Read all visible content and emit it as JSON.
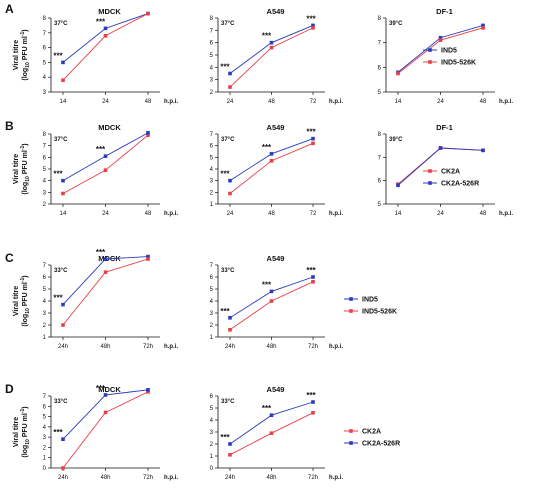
{
  "figure": {
    "panel_labels": [
      "A",
      "B",
      "C",
      "D"
    ],
    "ylabel_line1": "Viral titre",
    "ylabel_line2_pre": "(log",
    "ylabel_line2_sub": "10",
    "ylabel_line2_post": " PFU ml",
    "ylabel_line2_sup": "-1",
    "ylabel_line2_end": ")"
  },
  "colors": {
    "blue": "#2b3bbf",
    "red": "#e8404a"
  },
  "legends": [
    {
      "row": 0,
      "items": [
        {
          "label": "IND5",
          "color": "blue"
        },
        {
          "label": "IND5-526K",
          "color": "red"
        }
      ]
    },
    {
      "row": 1,
      "items": [
        {
          "label": "CK2A",
          "color": "red"
        },
        {
          "label": "CK2A-526R",
          "color": "blue"
        }
      ]
    },
    {
      "row": 2,
      "items": [
        {
          "label": "IND5",
          "color": "blue"
        },
        {
          "label": "IND5-526K",
          "color": "red"
        }
      ]
    },
    {
      "row": 3,
      "items": [
        {
          "label": "CK2A",
          "color": "red"
        },
        {
          "label": "CK2A-526R",
          "color": "blue"
        }
      ]
    }
  ],
  "chart_data": [
    {
      "type": "line",
      "row": 0,
      "col": 0,
      "title": "MDCK",
      "temp": "37°C",
      "xunit": "h.p.i.",
      "categories": [
        "14",
        "24",
        "48"
      ],
      "ylim": [
        3,
        8
      ],
      "yticks": [
        3,
        4,
        5,
        6,
        7,
        8
      ],
      "series": [
        {
          "name": "IND5",
          "color": "blue",
          "values": [
            5.0,
            7.3,
            8.3
          ]
        },
        {
          "name": "IND5-526K",
          "color": "red",
          "values": [
            3.8,
            6.8,
            8.3
          ]
        }
      ],
      "significance": [
        {
          "index": 0,
          "text": "***"
        },
        {
          "index": 1,
          "text": "***"
        }
      ]
    },
    {
      "type": "line",
      "row": 0,
      "col": 1,
      "title": "A549",
      "temp": "37°C",
      "xunit": "h.p.i.",
      "categories": [
        "24",
        "48",
        "72"
      ],
      "ylim": [
        2,
        8
      ],
      "yticks": [
        2,
        3,
        4,
        5,
        6,
        7,
        8
      ],
      "series": [
        {
          "name": "IND5",
          "color": "blue",
          "values": [
            3.5,
            6.0,
            7.4
          ]
        },
        {
          "name": "IND5-526K",
          "color": "red",
          "values": [
            2.4,
            5.6,
            7.2
          ]
        }
      ],
      "significance": [
        {
          "index": 0,
          "text": "***"
        },
        {
          "index": 1,
          "text": "***"
        },
        {
          "index": 2,
          "text": "***"
        }
      ]
    },
    {
      "type": "line",
      "row": 0,
      "col": 2,
      "title": "DF-1",
      "temp": "39°C",
      "xunit": "h.p.i.",
      "categories": [
        "14",
        "24",
        "48"
      ],
      "ylim": [
        5,
        8
      ],
      "yticks": [
        5,
        6,
        7,
        8
      ],
      "series": [
        {
          "name": "IND5",
          "color": "blue",
          "values": [
            5.8,
            7.2,
            7.7
          ]
        },
        {
          "name": "IND5-526K",
          "color": "red",
          "values": [
            5.75,
            7.1,
            7.6
          ]
        }
      ],
      "significance": []
    },
    {
      "type": "line",
      "row": 1,
      "col": 0,
      "title": "MDCK",
      "temp": "37°C",
      "xunit": "h.p.i.",
      "categories": [
        "14",
        "24",
        "48"
      ],
      "ylim": [
        2,
        8
      ],
      "yticks": [
        2,
        3,
        4,
        5,
        6,
        7,
        8
      ],
      "series": [
        {
          "name": "CK2A",
          "color": "red",
          "values": [
            2.9,
            4.9,
            7.9
          ]
        },
        {
          "name": "CK2A-526R",
          "color": "blue",
          "values": [
            4.0,
            6.1,
            8.1
          ]
        }
      ],
      "significance": [
        {
          "index": 0,
          "text": "***"
        },
        {
          "index": 1,
          "text": "***"
        }
      ]
    },
    {
      "type": "line",
      "row": 1,
      "col": 1,
      "title": "A549",
      "temp": "37°C",
      "xunit": "h.p.i.",
      "categories": [
        "24",
        "48",
        "72"
      ],
      "ylim": [
        1,
        7
      ],
      "yticks": [
        1,
        2,
        3,
        4,
        5,
        6,
        7
      ],
      "series": [
        {
          "name": "CK2A",
          "color": "red",
          "values": [
            1.9,
            4.7,
            6.2
          ]
        },
        {
          "name": "CK2A-526R",
          "color": "blue",
          "values": [
            3.0,
            5.3,
            6.6
          ]
        }
      ],
      "significance": [
        {
          "index": 0,
          "text": "***"
        },
        {
          "index": 1,
          "text": "***"
        },
        {
          "index": 2,
          "text": "***"
        }
      ]
    },
    {
      "type": "line",
      "row": 1,
      "col": 2,
      "title": "DF-1",
      "temp": "39°C",
      "xunit": "h.p.i.",
      "categories": [
        "14",
        "24",
        "48"
      ],
      "ylim": [
        5,
        8
      ],
      "yticks": [
        5,
        6,
        7,
        8
      ],
      "series": [
        {
          "name": "CK2A",
          "color": "red",
          "values": [
            5.85,
            7.4,
            7.3
          ]
        },
        {
          "name": "CK2A-526R",
          "color": "blue",
          "values": [
            5.8,
            7.4,
            7.3
          ]
        }
      ],
      "significance": []
    },
    {
      "type": "line",
      "row": 2,
      "col": 0,
      "title": "MDCK",
      "temp": "33°C",
      "xunit": "h.p.i.",
      "categories": [
        "24h",
        "48h",
        "72h"
      ],
      "ylim": [
        1,
        7
      ],
      "yticks": [
        1,
        2,
        3,
        4,
        5,
        6,
        7
      ],
      "series": [
        {
          "name": "IND5",
          "color": "blue",
          "values": [
            3.7,
            7.5,
            7.7
          ]
        },
        {
          "name": "IND5-526K",
          "color": "red",
          "values": [
            2.0,
            6.4,
            7.5
          ]
        }
      ],
      "significance": [
        {
          "index": 0,
          "text": "***"
        },
        {
          "index": 1,
          "text": "***"
        }
      ]
    },
    {
      "type": "line",
      "row": 2,
      "col": 1,
      "title": "A549",
      "temp": "33°C",
      "xunit": "h.p.i.",
      "categories": [
        "24h",
        "48h",
        "72h"
      ],
      "ylim": [
        1,
        7
      ],
      "yticks": [
        1,
        2,
        3,
        4,
        5,
        6,
        7
      ],
      "series": [
        {
          "name": "IND5",
          "color": "blue",
          "values": [
            2.6,
            4.8,
            6.0
          ]
        },
        {
          "name": "IND5-526K",
          "color": "red",
          "values": [
            1.6,
            4.0,
            5.6
          ]
        }
      ],
      "significance": [
        {
          "index": 0,
          "text": "***"
        },
        {
          "index": 1,
          "text": "***"
        },
        {
          "index": 2,
          "text": "***"
        }
      ]
    },
    {
      "type": "line",
      "row": 3,
      "col": 0,
      "title": "MDCK",
      "temp": "33°C",
      "xunit": "h.p.i.",
      "categories": [
        "24h",
        "48h",
        "72h"
      ],
      "ylim": [
        0,
        7
      ],
      "yticks": [
        0,
        1,
        2,
        3,
        4,
        5,
        6,
        7
      ],
      "series": [
        {
          "name": "CK2A",
          "color": "red",
          "values": [
            0.0,
            5.4,
            7.4
          ]
        },
        {
          "name": "CK2A-526R",
          "color": "blue",
          "values": [
            2.8,
            7.1,
            7.6
          ]
        }
      ],
      "significance": [
        {
          "index": 0,
          "text": "***"
        },
        {
          "index": 1,
          "text": "***"
        }
      ]
    },
    {
      "type": "line",
      "row": 3,
      "col": 1,
      "title": "A549",
      "temp": "33°C",
      "xunit": "h.p.i.",
      "categories": [
        "24h",
        "48h",
        "72h"
      ],
      "ylim": [
        0,
        6
      ],
      "yticks": [
        0,
        1,
        2,
        3,
        4,
        5,
        6
      ],
      "series": [
        {
          "name": "CK2A",
          "color": "red",
          "values": [
            1.1,
            2.9,
            4.6
          ]
        },
        {
          "name": "CK2A-526R",
          "color": "blue",
          "values": [
            2.0,
            4.4,
            5.5
          ]
        }
      ],
      "significance": [
        {
          "index": 0,
          "text": "***"
        },
        {
          "index": 1,
          "text": "***"
        },
        {
          "index": 2,
          "text": "***"
        }
      ]
    }
  ]
}
